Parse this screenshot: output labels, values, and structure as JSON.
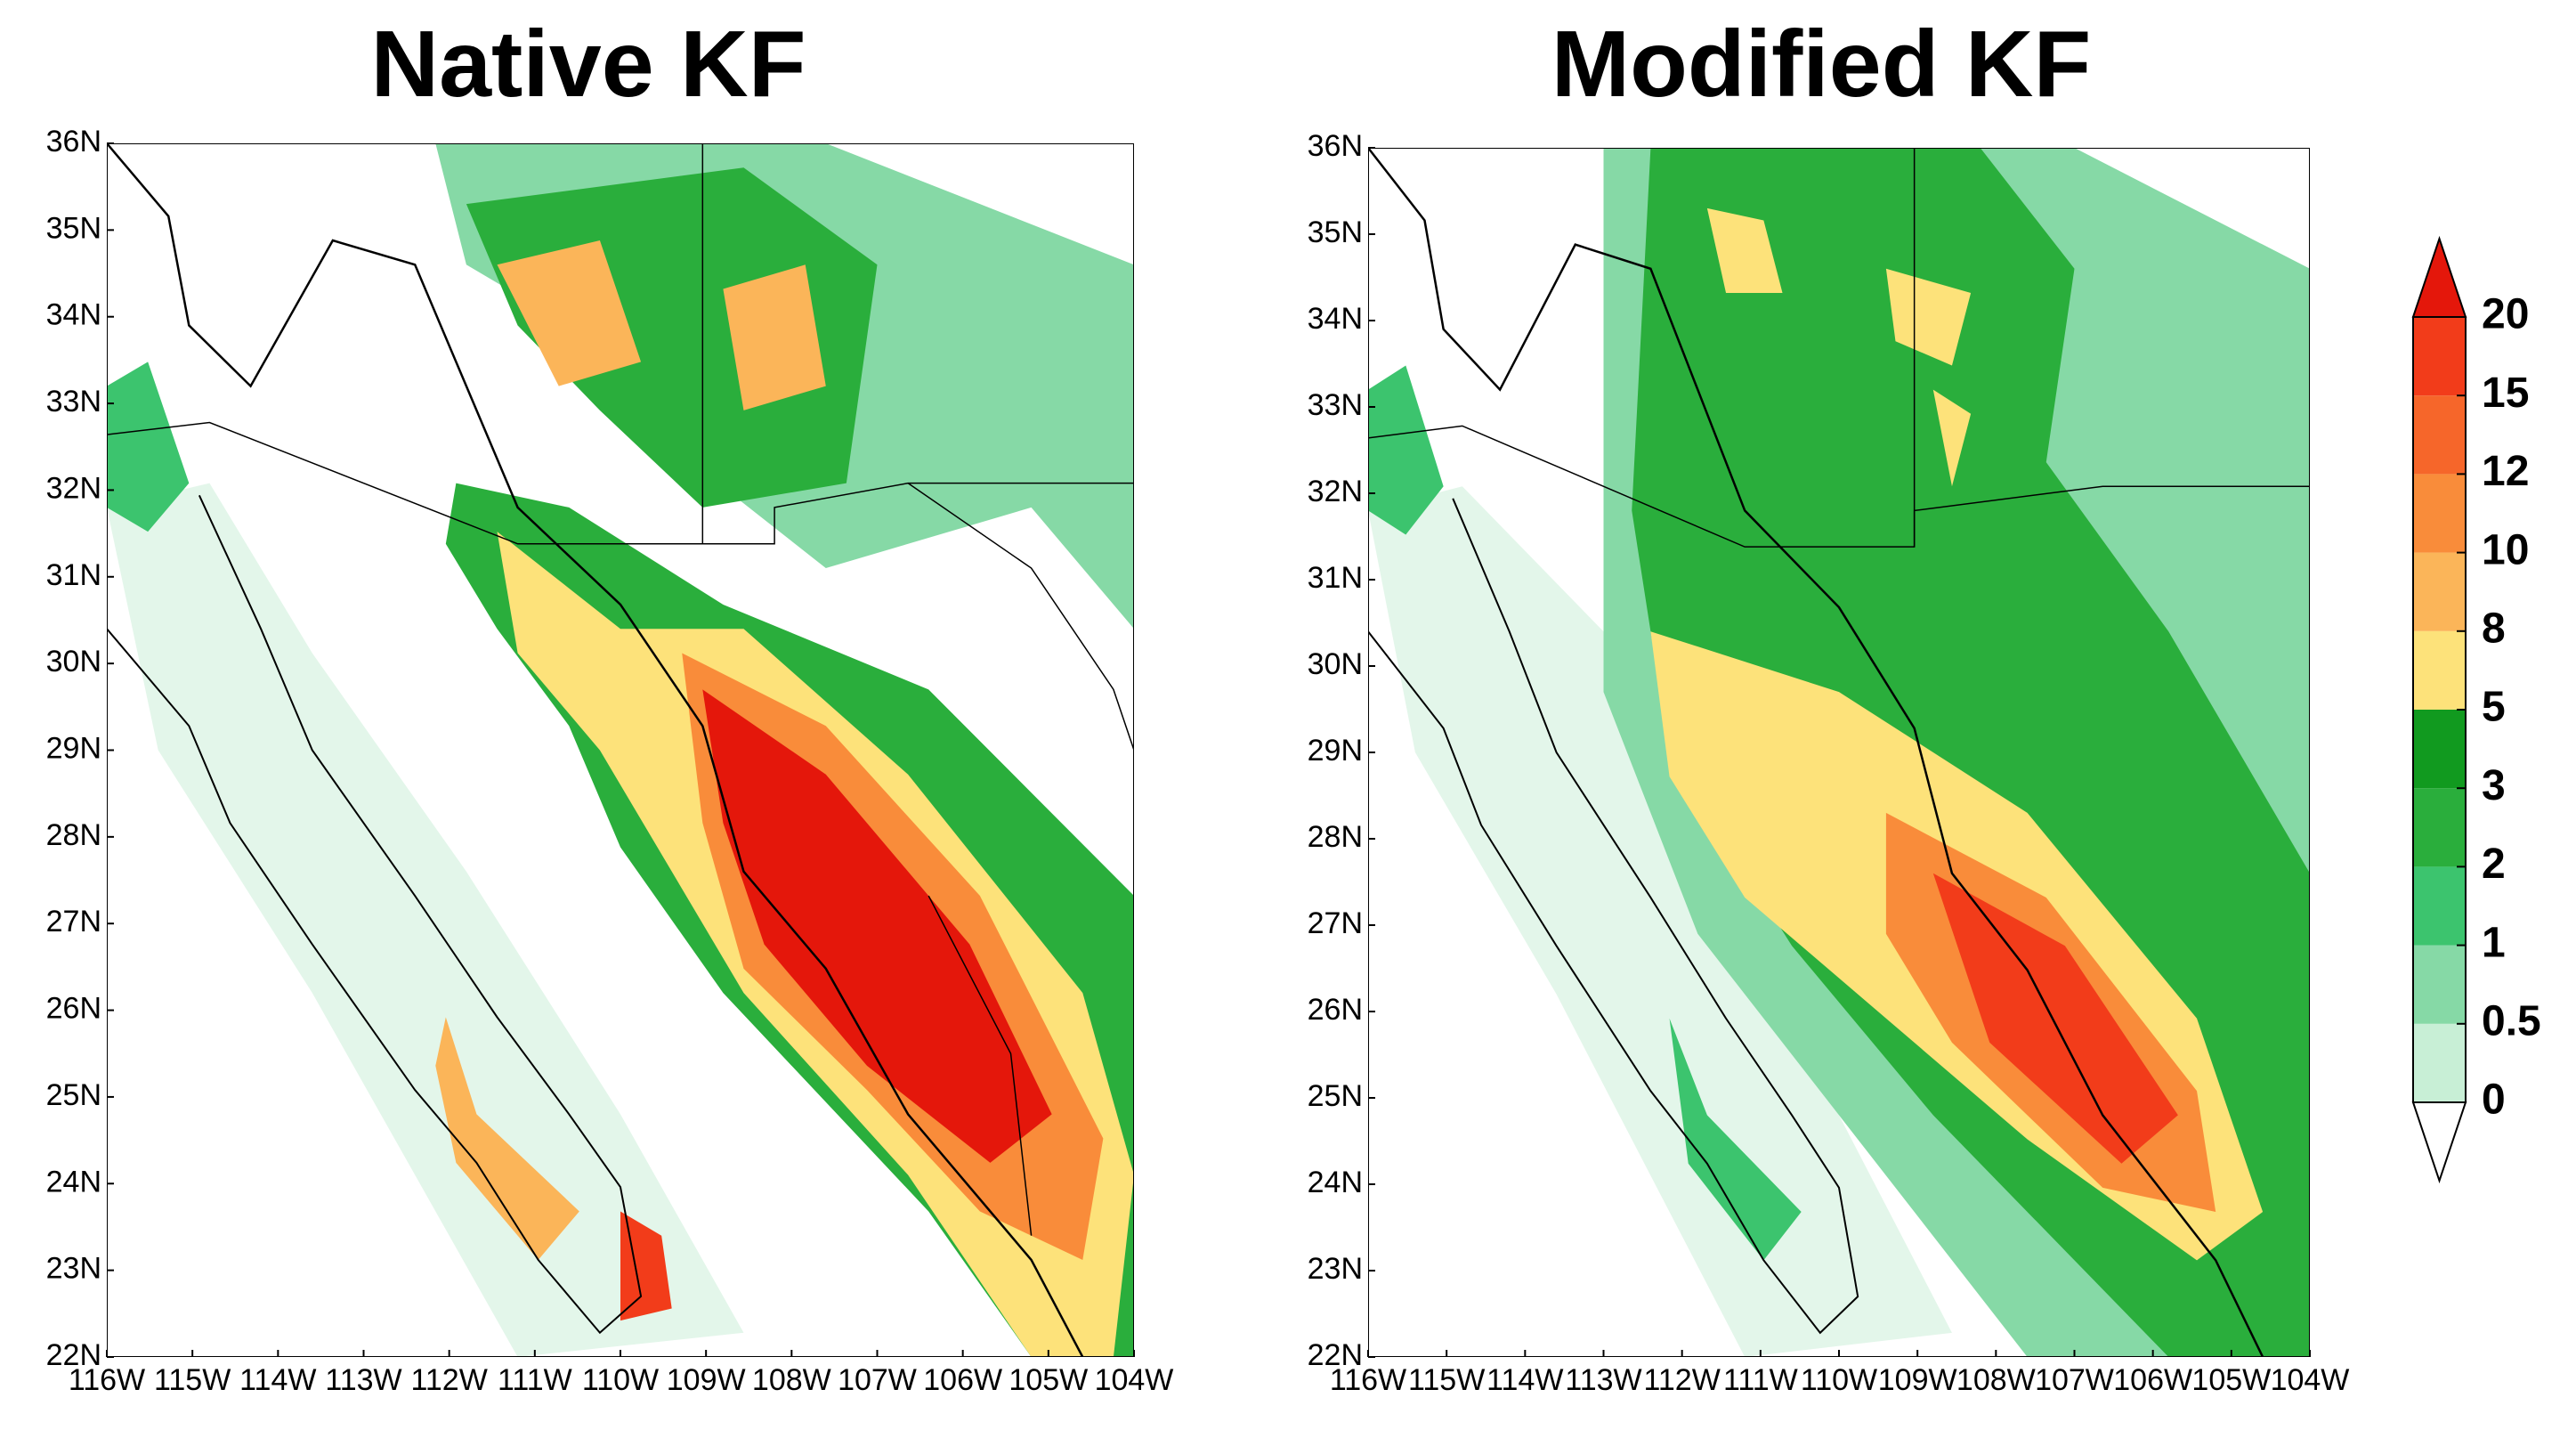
{
  "panels": [
    {
      "title": "Native KF"
    },
    {
      "title": "Modified KF"
    }
  ],
  "lat_range": [
    22,
    36
  ],
  "lon_range": [
    -116,
    -104
  ],
  "lat_ticks": [
    {
      "value": 22,
      "label": "22N"
    },
    {
      "value": 23,
      "label": "23N"
    },
    {
      "value": 24,
      "label": "24N"
    },
    {
      "value": 25,
      "label": "25N"
    },
    {
      "value": 26,
      "label": "26N"
    },
    {
      "value": 27,
      "label": "27N"
    },
    {
      "value": 28,
      "label": "28N"
    },
    {
      "value": 29,
      "label": "29N"
    },
    {
      "value": 30,
      "label": "30N"
    },
    {
      "value": 31,
      "label": "31N"
    },
    {
      "value": 32,
      "label": "32N"
    },
    {
      "value": 33,
      "label": "33N"
    },
    {
      "value": 34,
      "label": "34N"
    },
    {
      "value": 35,
      "label": "35N"
    },
    {
      "value": 36,
      "label": "36N"
    }
  ],
  "lon_ticks": [
    {
      "value": -116,
      "label": "116W"
    },
    {
      "value": -115,
      "label": "115W"
    },
    {
      "value": -114,
      "label": "114W"
    },
    {
      "value": -113,
      "label": "113W"
    },
    {
      "value": -112,
      "label": "112W"
    },
    {
      "value": -111,
      "label": "111W"
    },
    {
      "value": -110,
      "label": "110W"
    },
    {
      "value": -109,
      "label": "109W"
    },
    {
      "value": -108,
      "label": "108W"
    },
    {
      "value": -107,
      "label": "107W"
    },
    {
      "value": -106,
      "label": "106W"
    },
    {
      "value": -105,
      "label": "105W"
    },
    {
      "value": -104,
      "label": "104W"
    }
  ],
  "colorbar": {
    "levels": [
      0,
      0.5,
      1,
      2,
      3,
      5,
      8,
      10,
      12,
      15,
      20
    ],
    "colors": [
      "#ffffff",
      "#c8efd6",
      "#86d9a6",
      "#3cc46e",
      "#2aae3c",
      "#119a1f",
      "#fde27a",
      "#fbb559",
      "#f98c3a",
      "#f6662a",
      "#f23c1a",
      "#e4170b"
    ]
  }
}
